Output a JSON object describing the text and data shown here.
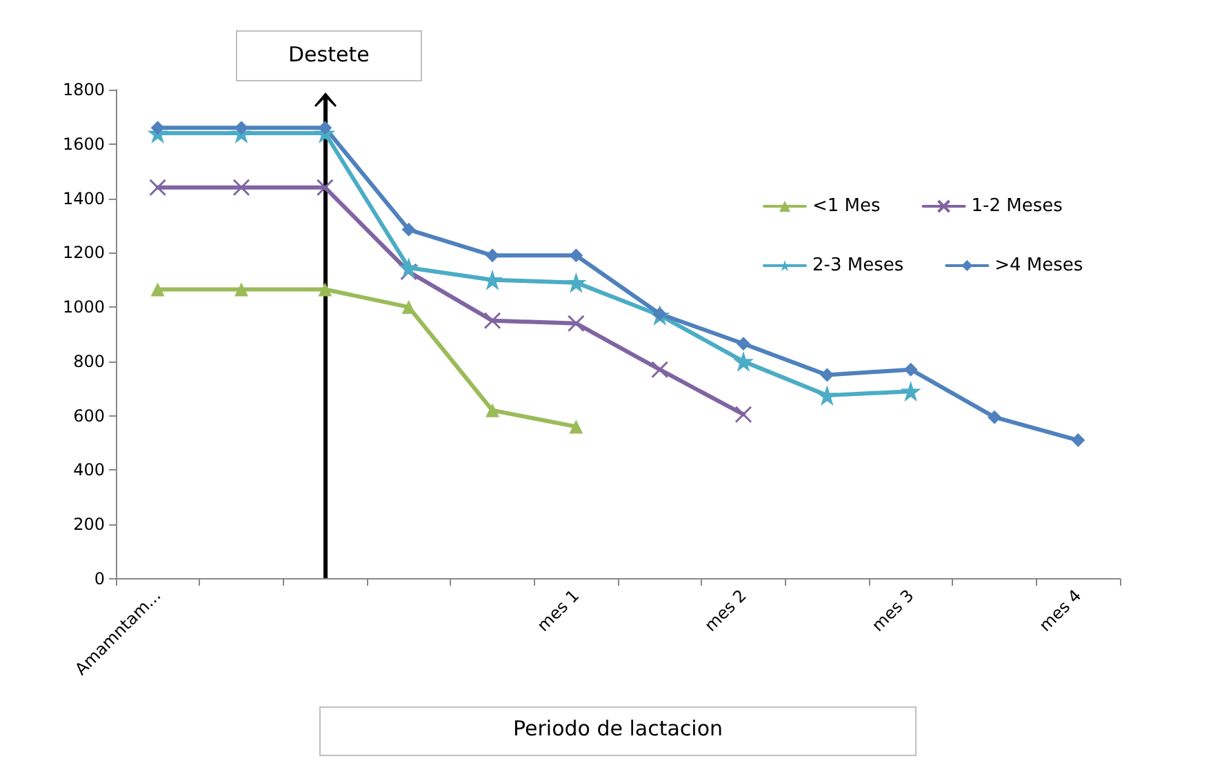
{
  "chart_data": {
    "type": "line",
    "annotations": [
      "Destete"
    ],
    "xlabel": "Periodo de lactacion",
    "categories": [
      "Amamntam...",
      null,
      null,
      null,
      null,
      "mes 1",
      null,
      "mes 2",
      null,
      "mes 3",
      null,
      "mes 4"
    ],
    "series": [
      {
        "name": "<1 Mes",
        "color": "#9bbb59",
        "marker": "triangle",
        "values": [
          1065,
          1065,
          1065,
          1000,
          620,
          560,
          null,
          null,
          null,
          null,
          null,
          null
        ]
      },
      {
        "name": "1-2 Meses",
        "color": "#8064a2",
        "marker": "cross",
        "values": [
          1440,
          1440,
          1440,
          1130,
          950,
          940,
          770,
          605,
          null,
          null,
          null,
          null
        ]
      },
      {
        "name": "2-3 Meses",
        "color": "#4bacc6",
        "marker": "star",
        "values": [
          1640,
          1640,
          1640,
          1145,
          1100,
          1090,
          970,
          800,
          675,
          690,
          null,
          null
        ]
      },
      {
        "name": ">4 Meses",
        "color": "#4f81bd",
        "marker": "diamond",
        "values": [
          1660,
          1660,
          1660,
          1285,
          1190,
          1190,
          975,
          865,
          750,
          770,
          595,
          510
        ]
      }
    ],
    "ylim": [
      0,
      1800
    ],
    "yticks": [
      0,
      200,
      400,
      600,
      800,
      1000,
      1200,
      1400,
      1600,
      1800
    ],
    "grid": false,
    "legend": "top right",
    "line_style": "solid"
  }
}
